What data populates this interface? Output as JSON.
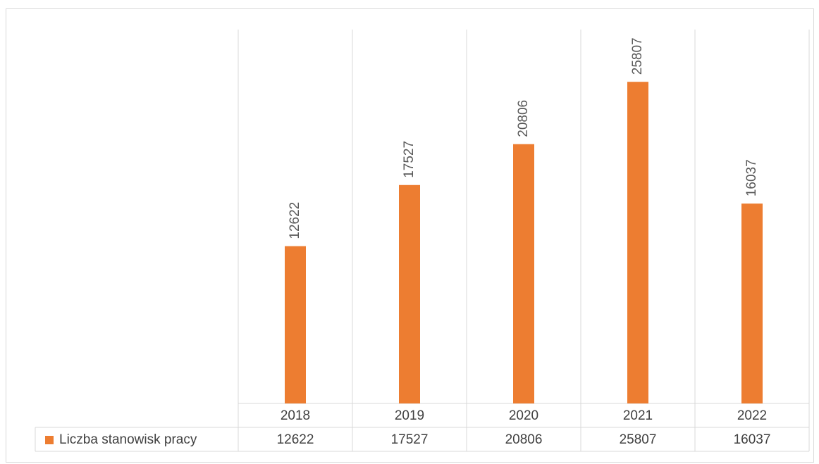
{
  "chart_data": {
    "type": "bar",
    "series_name": "Liczba stanowisk pracy",
    "categories": [
      "2018",
      "2019",
      "2020",
      "2021",
      "2022"
    ],
    "values": [
      12622,
      17527,
      20806,
      25807,
      16037
    ],
    "color": "#ed7d31",
    "ylim": [
      0,
      30000
    ],
    "data_table": true
  }
}
